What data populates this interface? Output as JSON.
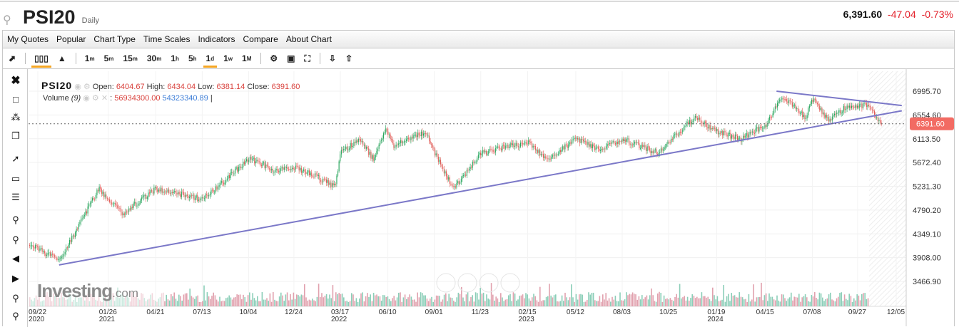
{
  "header": {
    "symbol": "PSI20",
    "timeframe": "Daily",
    "last": "6,391.60",
    "change": "-47.04",
    "change_pct": "-0.73%"
  },
  "menu": [
    "My Quotes",
    "Popular",
    "Chart Type",
    "Time Scales",
    "Indicators",
    "Compare",
    "About Chart"
  ],
  "toolbar": {
    "intervals": [
      {
        "n": "1",
        "u": "m"
      },
      {
        "n": "5",
        "u": "m"
      },
      {
        "n": "15",
        "u": "m"
      },
      {
        "n": "30",
        "u": "m"
      },
      {
        "n": "1",
        "u": "h"
      },
      {
        "n": "5",
        "u": "h"
      },
      {
        "n": "1",
        "u": "d"
      },
      {
        "n": "1",
        "u": "w"
      },
      {
        "n": "1",
        "u": "M"
      }
    ],
    "active_interval": "1d",
    "active_chart_type": "candlestick"
  },
  "legend": {
    "name": "PSI20",
    "open_label": "Open:",
    "open": "6404.67",
    "high_label": "High:",
    "high": "6434.04",
    "low_label": "Low:",
    "low": "6381.14",
    "close_label": "Close:",
    "close": "6391.60",
    "volume_label": "Volume",
    "volume_period": "(9)",
    "volume": "56934300.00",
    "volume_ma": "54323340.89"
  },
  "logo": {
    "main": "Investing",
    "suffix": ".com"
  },
  "colors": {
    "up": "#26a65b",
    "down": "#e05a55",
    "trendline": "#7b78c8",
    "price_tag": "#f26b63",
    "active": "#f5a623"
  },
  "chart_data": {
    "type": "candlestick",
    "y_ticks": [
      "6995.70",
      "6554.60",
      "6113.50",
      "5672.40",
      "5231.30",
      "4790.20",
      "4349.10",
      "3908.00",
      "3466.90"
    ],
    "ylim": [
      3466.9,
      6995.7
    ],
    "x_ticks": [
      {
        "d": "2020-09-22",
        "l": "09/22",
        "y": "2020"
      },
      {
        "d": "2021-01-26",
        "l": "01/26",
        "y": "2021"
      },
      {
        "d": "2021-04-21",
        "l": "04/21"
      },
      {
        "d": "2021-07-13",
        "l": "07/13"
      },
      {
        "d": "2021-10-04",
        "l": "10/04"
      },
      {
        "d": "2021-12-24",
        "l": "12/24"
      },
      {
        "d": "2022-03-17",
        "l": "03/17",
        "y": "2022"
      },
      {
        "d": "2022-06-10",
        "l": "06/10"
      },
      {
        "d": "2022-09-01",
        "l": "09/01"
      },
      {
        "d": "2022-11-23",
        "l": "11/23"
      },
      {
        "d": "2023-02-15",
        "l": "02/15",
        "y": "2023"
      },
      {
        "d": "2023-05-12",
        "l": "05/12"
      },
      {
        "d": "2023-08-03",
        "l": "08/03"
      },
      {
        "d": "2023-10-25",
        "l": "10/25"
      },
      {
        "d": "2024-01-19",
        "l": "01/19",
        "y": "2024"
      },
      {
        "d": "2024-04-15",
        "l": "04/15"
      },
      {
        "d": "2024-07-08",
        "l": "07/08"
      },
      {
        "d": "2024-09-27",
        "l": "09/27"
      },
      {
        "d": "2024-12-05",
        "l": "12/05"
      }
    ],
    "price": [
      [
        "2020-09-22",
        4063
      ],
      [
        "2020-10-30",
        3865
      ],
      [
        "2020-11-25",
        4327
      ],
      [
        "2021-01-08",
        5186
      ],
      [
        "2021-02-20",
        4724
      ],
      [
        "2021-04-21",
        5186
      ],
      [
        "2021-07-13",
        4988
      ],
      [
        "2021-08-20",
        5318
      ],
      [
        "2021-10-04",
        5754
      ],
      [
        "2021-11-20",
        5516
      ],
      [
        "2021-12-24",
        5582
      ],
      [
        "2022-01-25",
        5450
      ],
      [
        "2022-03-07",
        5226
      ],
      [
        "2022-03-17",
        5847
      ],
      [
        "2022-04-20",
        6111
      ],
      [
        "2022-05-15",
        5714
      ],
      [
        "2022-06-05",
        6309
      ],
      [
        "2022-06-20",
        5978
      ],
      [
        "2022-08-15",
        6243
      ],
      [
        "2022-09-01",
        5847
      ],
      [
        "2022-10-05",
        5186
      ],
      [
        "2022-11-23",
        5847
      ],
      [
        "2023-01-10",
        5978
      ],
      [
        "2023-02-15",
        6045
      ],
      [
        "2023-03-20",
        5714
      ],
      [
        "2023-05-12",
        6111
      ],
      [
        "2023-06-20",
        5912
      ],
      [
        "2023-08-03",
        6111
      ],
      [
        "2023-10-05",
        5847
      ],
      [
        "2023-10-25",
        6045
      ],
      [
        "2023-12-10",
        6507
      ],
      [
        "2024-01-19",
        6243
      ],
      [
        "2024-03-01",
        6111
      ],
      [
        "2024-04-15",
        6375
      ],
      [
        "2024-05-15",
        6903
      ],
      [
        "2024-06-25",
        6507
      ],
      [
        "2024-07-08",
        6837
      ],
      [
        "2024-08-06",
        6441
      ],
      [
        "2024-09-05",
        6705
      ],
      [
        "2024-10-15",
        6731
      ],
      [
        "2024-11-08",
        6391.6
      ]
    ],
    "last_price": "6391.60",
    "trendlines": [
      {
        "from": [
          "2020-10-30",
          3772
        ],
        "to": [
          "2024-12-15",
          6632
        ]
      },
      {
        "from": [
          "2024-05-05",
          6995
        ],
        "to": [
          "2024-12-15",
          6730
        ]
      }
    ]
  }
}
